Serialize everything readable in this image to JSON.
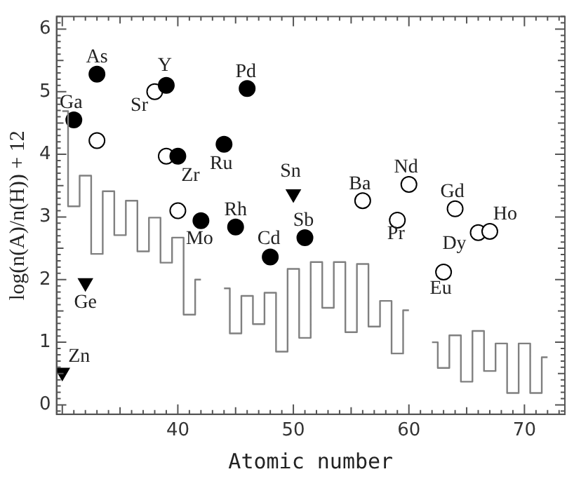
{
  "chart_data": {
    "type": "scatter",
    "xlabel": "Atomic number",
    "ylabel": "log(n(A)/n(H)) + 12",
    "xlim": [
      29.5,
      73.5
    ],
    "ylim": [
      -0.15,
      6.2
    ],
    "xticks": [
      40,
      50,
      60,
      70
    ],
    "yticks": [
      0,
      1,
      2,
      3,
      4,
      5,
      6
    ],
    "grid": false,
    "legend": false,
    "series": [
      {
        "type": "step",
        "color": "#808080",
        "marker": "none",
        "x": [
          30,
          31,
          32,
          33,
          34,
          35,
          36,
          37,
          38,
          39,
          40,
          41,
          42,
          43,
          44,
          45,
          46,
          47,
          48,
          49,
          50,
          51,
          52,
          53,
          54,
          55,
          56,
          57,
          58,
          59,
          60,
          61,
          62,
          63,
          64,
          65,
          66,
          67,
          68,
          69,
          70,
          71,
          72
        ],
        "values": [
          4.69,
          3.17,
          3.66,
          2.41,
          3.41,
          2.71,
          3.26,
          2.45,
          2.99,
          2.27,
          2.67,
          1.44,
          2.0,
          null,
          1.86,
          1.14,
          1.74,
          1.29,
          1.79,
          0.85,
          2.17,
          1.07,
          2.28,
          1.55,
          2.28,
          1.16,
          2.25,
          1.25,
          1.66,
          0.82,
          1.51,
          null,
          1.0,
          0.59,
          1.11,
          0.37,
          1.18,
          0.54,
          0.98,
          0.19,
          0.98,
          0.19,
          0.76
        ]
      },
      {
        "color": "#000000",
        "marker": "circle",
        "x": [
          31,
          33,
          39,
          40,
          42,
          44,
          45,
          46,
          48,
          51
        ],
        "values": [
          4.55,
          5.28,
          5.1,
          3.97,
          2.94,
          4.16,
          2.84,
          5.05,
          2.36,
          2.67
        ]
      },
      {
        "color": "#ffffff",
        "marker": "circle",
        "x": [
          33,
          38,
          39,
          40,
          56,
          59,
          60,
          63,
          64,
          66,
          67
        ],
        "values": [
          4.22,
          5.0,
          3.97,
          3.1,
          3.26,
          2.95,
          3.52,
          2.12,
          3.13,
          2.75,
          2.77
        ]
      },
      {
        "color": "#000000",
        "marker": "triangle-down",
        "x": [
          30,
          32,
          50
        ],
        "values": [
          0.52,
          1.95,
          3.37
        ]
      }
    ],
    "annotations": [
      {
        "text": "Zn",
        "x": 30,
        "y": 0.52
      },
      {
        "text": "Ga",
        "x": 31,
        "y": 4.55
      },
      {
        "text": "Ge",
        "x": 32,
        "y": 1.95
      },
      {
        "text": "As",
        "x": 33,
        "y": 5.28
      },
      {
        "text": "Sr",
        "x": 38,
        "y": 5.0
      },
      {
        "text": "Y",
        "x": 39,
        "y": 5.1
      },
      {
        "text": "Zr",
        "x": 40,
        "y": 3.97
      },
      {
        "text": "Mo",
        "x": 42,
        "y": 2.94
      },
      {
        "text": "Ru",
        "x": 44,
        "y": 4.16
      },
      {
        "text": "Rh",
        "x": 45,
        "y": 2.84
      },
      {
        "text": "Pd",
        "x": 46,
        "y": 5.05
      },
      {
        "text": "Cd",
        "x": 48,
        "y": 2.36
      },
      {
        "text": "Sn",
        "x": 50,
        "y": 3.37
      },
      {
        "text": "Sb",
        "x": 51,
        "y": 2.67
      },
      {
        "text": "Ba",
        "x": 56,
        "y": 3.26
      },
      {
        "text": "Pr",
        "x": 59,
        "y": 2.95
      },
      {
        "text": "Nd",
        "x": 60,
        "y": 3.52
      },
      {
        "text": "Eu",
        "x": 63,
        "y": 2.12
      },
      {
        "text": "Gd",
        "x": 64,
        "y": 3.13
      },
      {
        "text": "Dy",
        "x": 66,
        "y": 2.75
      },
      {
        "text": "Ho",
        "x": 67,
        "y": 2.77
      }
    ]
  }
}
